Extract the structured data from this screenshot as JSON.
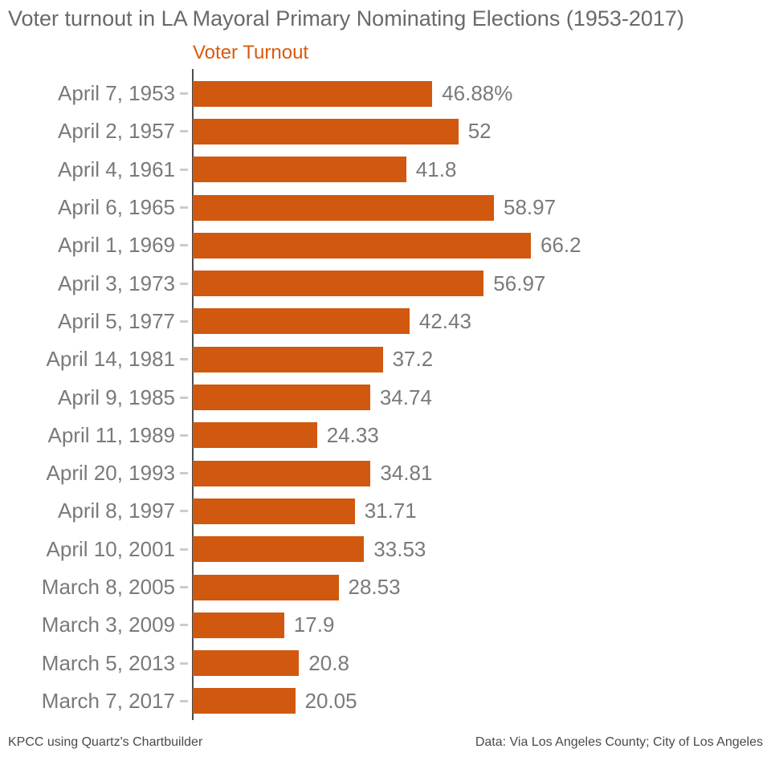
{
  "header": {
    "title": "Voter turnout in LA Mayoral Primary Nominating Elections (1953-2017)"
  },
  "legend": {
    "label": "Voter Turnout",
    "color": "#d95b10"
  },
  "chart_data": {
    "type": "bar",
    "orientation": "horizontal",
    "title": "Voter turnout in LA Mayoral Primary Nominating Elections (1953-2017)",
    "series_label": "Voter Turnout",
    "categories": [
      "April 7, 1953",
      "April 2, 1957",
      "April 4, 1961",
      "April 6, 1965",
      "April 1, 1969",
      "April 3, 1973",
      "April 5, 1977",
      "April 14, 1981",
      "April 9, 1985",
      "April 11, 1989",
      "April 20, 1993",
      "April 8, 1997",
      "April 10, 2001",
      "March 8, 2005",
      "March 3, 2009",
      "March 5, 2013",
      "March 7, 2017"
    ],
    "values": [
      46.88,
      52,
      41.8,
      58.97,
      66.2,
      56.97,
      42.43,
      37.2,
      34.74,
      24.33,
      34.81,
      31.71,
      33.53,
      28.53,
      17.9,
      20.8,
      20.05
    ],
    "value_labels": [
      "46.88%",
      "52",
      "41.8",
      "58.97",
      "66.2",
      "56.97",
      "42.43",
      "37.2",
      "34.74",
      "24.33",
      "34.81",
      "31.71",
      "33.53",
      "28.53",
      "17.9",
      "20.8",
      "20.05"
    ],
    "unit": "percent",
    "xlim": [
      0,
      66.2
    ],
    "bar_color": "#d0580f",
    "grid": false,
    "legend_position": "top-left-of-plot"
  },
  "footer": {
    "left": "KPCC using Quartz's Chartbuilder",
    "right": "Data: Via Los Angeles County; City of Los Angeles"
  }
}
